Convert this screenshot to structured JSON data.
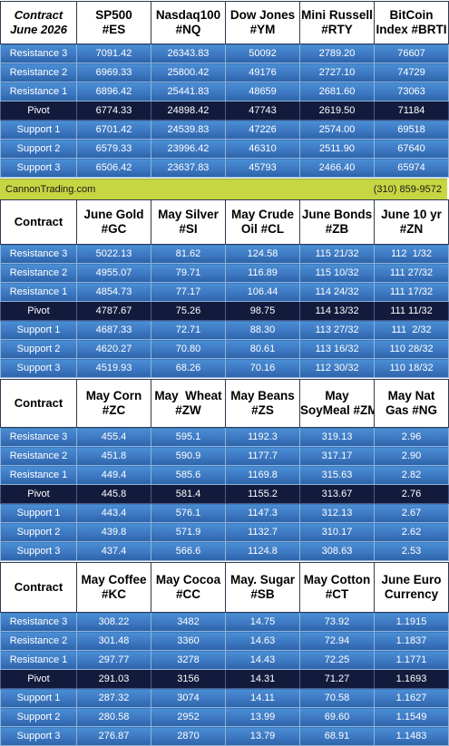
{
  "block1": {
    "headers": [
      [
        "Contract",
        "June 2026"
      ],
      [
        "SP500",
        "#ES"
      ],
      [
        "Nasdaq100",
        "#NQ"
      ],
      [
        "Dow Jones",
        "#YM"
      ],
      [
        "Mini Russell",
        "#RTY"
      ],
      [
        "BitCoin",
        "Index #BRTI"
      ]
    ],
    "rows": [
      [
        "Resistance 3",
        "7091.42",
        "26343.83",
        "50092",
        "2789.20",
        "76607"
      ],
      [
        "Resistance 2",
        "6969.33",
        "25800.42",
        "49176",
        "2727.10",
        "74729"
      ],
      [
        "Resistance 1",
        "6896.42",
        "25441.83",
        "48659",
        "2681.60",
        "73063"
      ],
      [
        "Pivot",
        "6774.33",
        "24898.42",
        "47743",
        "2619.50",
        "71184"
      ],
      [
        "Support 1",
        "6701.42",
        "24539.83",
        "47226",
        "2574.00",
        "69518"
      ],
      [
        "Support 2",
        "6579.33",
        "23996.42",
        "46310",
        "2511.90",
        "67640"
      ],
      [
        "Support 3",
        "6506.42",
        "23637.83",
        "45793",
        "2466.40",
        "65974"
      ]
    ]
  },
  "banner": {
    "left": "CannonTrading.com",
    "right": "(310) 859-9572"
  },
  "block2": {
    "headers": [
      [
        "Contract",
        ""
      ],
      [
        "June Gold",
        "#GC"
      ],
      [
        "May Silver",
        "#SI"
      ],
      [
        "May Crude",
        "Oil #CL"
      ],
      [
        "June Bonds",
        "#ZB"
      ],
      [
        "June 10 yr",
        "#ZN"
      ]
    ],
    "rows": [
      [
        "Resistance 3",
        "5022.13",
        "81.62",
        "124.58",
        "115 21/32",
        "112  1/32"
      ],
      [
        "Resistance 2",
        "4955.07",
        "79.71",
        "116.89",
        "115 10/32",
        "111 27/32"
      ],
      [
        "Resistance 1",
        "4854.73",
        "77.17",
        "106.44",
        "114 24/32",
        "111 17/32"
      ],
      [
        "Pivot",
        "4787.67",
        "75.26",
        "98.75",
        "114 13/32",
        "111 11/32"
      ],
      [
        "Support 1",
        "4687.33",
        "72.71",
        "88.30",
        "113 27/32",
        "111  2/32"
      ],
      [
        "Support 2",
        "4620.27",
        "70.80",
        "80.61",
        "113 16/32",
        "110 28/32"
      ],
      [
        "Support 3",
        "4519.93",
        "68.26",
        "70.16",
        "112 30/32",
        "110 18/32"
      ]
    ]
  },
  "block3": {
    "headers": [
      [
        "Contract",
        ""
      ],
      [
        "May Corn",
        "#ZC"
      ],
      [
        "May  Wheat",
        "#ZW"
      ],
      [
        "May Beans",
        "#ZS"
      ],
      [
        "May",
        "SoyMeal #ZM"
      ],
      [
        "May Nat",
        "Gas #NG"
      ]
    ],
    "rows": [
      [
        "Resistance 3",
        "455.4",
        "595.1",
        "1192.3",
        "319.13",
        "2.96"
      ],
      [
        "Resistance 2",
        "451.8",
        "590.9",
        "1177.7",
        "317.17",
        "2.90"
      ],
      [
        "Resistance 1",
        "449.4",
        "585.6",
        "1169.8",
        "315.63",
        "2.82"
      ],
      [
        "Pivot",
        "445.8",
        "581.4",
        "1155.2",
        "313.67",
        "2.76"
      ],
      [
        "Support 1",
        "443.4",
        "576.1",
        "1147.3",
        "312.13",
        "2.67"
      ],
      [
        "Support 2",
        "439.8",
        "571.9",
        "1132.7",
        "310.17",
        "2.62"
      ],
      [
        "Support 3",
        "437.4",
        "566.6",
        "1124.8",
        "308.63",
        "2.53"
      ]
    ]
  },
  "block4": {
    "headers": [
      [
        "Contract",
        ""
      ],
      [
        "May Coffee",
        "#KC"
      ],
      [
        "May Cocoa",
        "#CC"
      ],
      [
        "May. Sugar",
        "#SB"
      ],
      [
        "May Cotton",
        "#CT"
      ],
      [
        "June Euro",
        "Currency"
      ]
    ],
    "rows": [
      [
        "Resistance 3",
        "308.22",
        "3482",
        "14.75",
        "73.92",
        "1.1915"
      ],
      [
        "Resistance 2",
        "301.48",
        "3360",
        "14.63",
        "72.94",
        "1.1837"
      ],
      [
        "Resistance 1",
        "297.77",
        "3278",
        "14.43",
        "72.25",
        "1.1771"
      ],
      [
        "Pivot",
        "291.03",
        "3156",
        "14.31",
        "71.27",
        "1.1693"
      ],
      [
        "Support 1",
        "287.32",
        "3074",
        "14.11",
        "70.58",
        "1.1627"
      ],
      [
        "Support 2",
        "280.58",
        "2952",
        "13.99",
        "69.60",
        "1.1549"
      ],
      [
        "Support 3",
        "276.87",
        "2870",
        "13.79",
        "68.91",
        "1.1483"
      ]
    ]
  }
}
